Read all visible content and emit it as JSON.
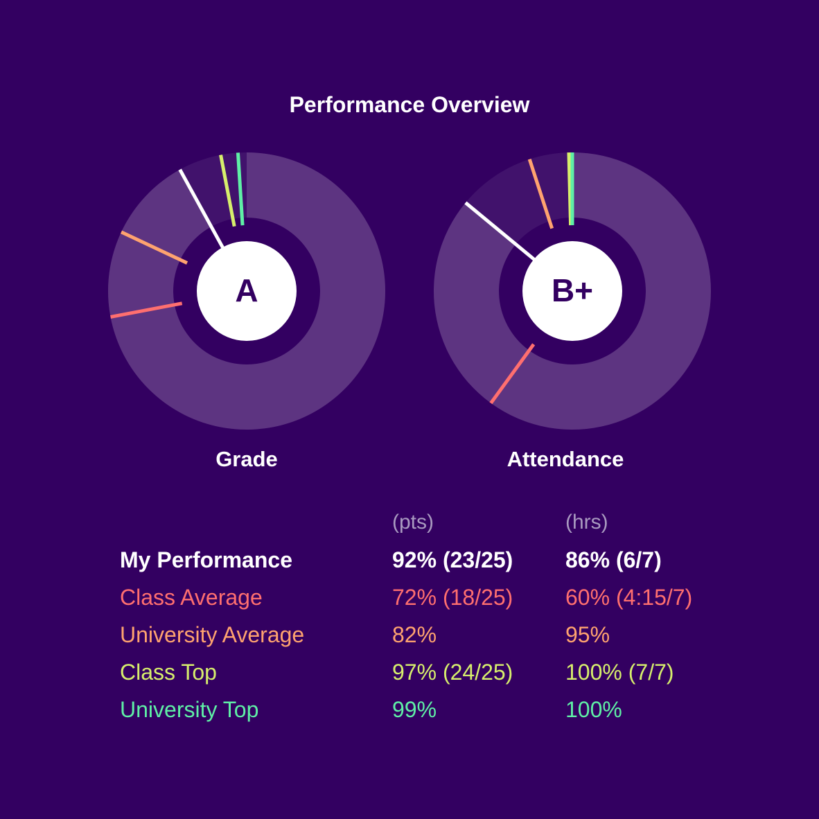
{
  "title": "Performance Overview",
  "colors": {
    "background": "#330061",
    "ring": "#5d3481",
    "my_performance": "#ffffff",
    "class_average": "#ff6f6f",
    "university_average": "#ffa36f",
    "class_top": "#d7ef6c",
    "university_top": "#5ff0a6"
  },
  "chart_data": [
    {
      "type": "pie",
      "variant": "donut",
      "label": "Grade",
      "center_text": "A",
      "unit": "(pts)",
      "series": [
        {
          "name": "My Performance",
          "value": 92
        },
        {
          "name": "Class Average",
          "value": 72
        },
        {
          "name": "University Average",
          "value": 82
        },
        {
          "name": "Class Top",
          "value": 97
        },
        {
          "name": "University Top",
          "value": 99
        }
      ]
    },
    {
      "type": "pie",
      "variant": "donut",
      "label": "Attendance",
      "center_text": "B+",
      "unit": "(hrs)",
      "series": [
        {
          "name": "My Performance",
          "value": 86
        },
        {
          "name": "Class Average",
          "value": 60
        },
        {
          "name": "University Average",
          "value": 95
        },
        {
          "name": "Class Top",
          "value": 100
        },
        {
          "name": "University Top",
          "value": 100
        }
      ]
    }
  ],
  "legend": {
    "units": [
      "(pts)",
      "(hrs)"
    ],
    "rows": [
      {
        "name": "My Performance",
        "grade": "92% (23/25)",
        "attendance": "86% (6/7)"
      },
      {
        "name": "Class Average",
        "grade": "72% (18/25)",
        "attendance": "60% (4:15/7)"
      },
      {
        "name": "University Average",
        "grade": "82%",
        "attendance": "95%"
      },
      {
        "name": "Class Top",
        "grade": "97% (24/25)",
        "attendance": "100% (7/7)"
      },
      {
        "name": "University Top",
        "grade": "99%",
        "attendance": "100%"
      }
    ]
  }
}
